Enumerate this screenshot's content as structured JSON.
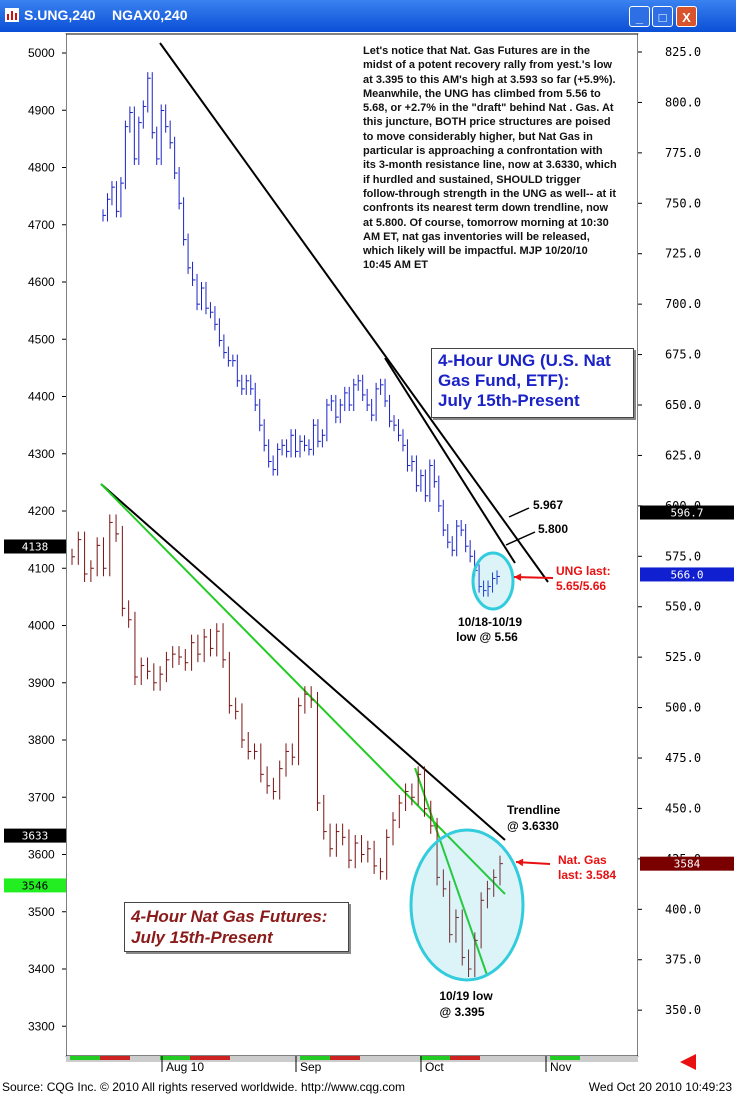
{
  "window": {
    "title_left": "S.UNG,240",
    "title_right": "NGAX0,240",
    "buttons": [
      "_",
      "□",
      "X"
    ]
  },
  "footer": {
    "source": "Source: CQG Inc. © 2010 All rights reserved worldwide. http://www.cqg.com",
    "timestamp": "Wed Oct 20 2010 10:49:23"
  },
  "commentary": "Let's notice that Nat. Gas Futures are in the midst of a potent recovery rally from yest.'s low at 3.395 to this AM's high at 3.593 so far (+5.9%). Meanwhile, the UNG has climbed from 5.56 to 5.68, or +2.7% in the \"draft\" behind Nat . Gas.  At this juncture, BOTH price structures are poised to move considerably higher, but Nat Gas in particular is approaching a confrontation with its 3-month resistance line, now at 3.6330, which if hurdled and sustained, SHOULD trigger follow-through strength in the UNG as well-- at it confronts its nearest term down trendline, now at 5.800.  Of course, tomorrow morning at 10:30 AM ET, nat gas inventories will be released, which likely will be impactful.  MJP  10/20/10  10:45 AM ET",
  "labels": {
    "ung_box": [
      "4-Hour UNG (U.S. Nat",
      "Gas Fund, ETF):",
      "July 15th-Present"
    ],
    "ng_box": [
      "4-Hour Nat Gas Futures:",
      "July 15th-Present"
    ],
    "ung_5967": "5.967",
    "ung_5800": "5.800",
    "ung_last": [
      "UNG last:",
      "5.65/5.66"
    ],
    "ung_low": [
      "10/18-10/19",
      "low @ 5.56"
    ],
    "ng_trend": [
      "Trendline",
      "@ 3.6330"
    ],
    "ng_last": [
      "Nat. Gas",
      "last: 3.584"
    ],
    "ng_low": [
      "10/19 low",
      "@ 3.395"
    ]
  },
  "tags": {
    "left_4138": "4138",
    "left_3633": "3633",
    "left_3546": "3546",
    "right_5967": "596.7",
    "right_566": "566.0",
    "right_3584": "3584"
  },
  "colors": {
    "ung_bars": "#1a22c8",
    "ng_bars": "#7a1010",
    "trend_black": "#000000",
    "trend_green": "#22cc22",
    "circle": "#33ccdd",
    "arrow_red": "#e81010",
    "tag_black": "#000000",
    "tag_blue": "#1020d0",
    "tag_green": "#22ee22",
    "tag_maroon": "#7a0000"
  },
  "chart_data": {
    "type": "line",
    "x_tick_labels": [
      "Aug 10",
      "Sep",
      "Oct",
      "Nov"
    ],
    "left_axis": {
      "ticks": [
        5000,
        4900,
        4800,
        4700,
        4600,
        4500,
        4400,
        4300,
        4200,
        4100,
        4000,
        3900,
        3800,
        3700,
        3600,
        3500,
        3400,
        3300
      ]
    },
    "right_axis": {
      "ticks": [
        "825.0",
        "800.0",
        "775.0",
        "750.0",
        "725.0",
        "700.0",
        "675.0",
        "650.0",
        "625.0",
        "600.0",
        "575.0",
        "550.0",
        "525.0",
        "500.0",
        "475.0",
        "450.0",
        "425.0",
        "400.0",
        "375.0",
        "350.0"
      ]
    },
    "series": [
      {
        "name": "S.UNG,240",
        "values": [
          7.44,
          7.52,
          7.58,
          7.46,
          7.6,
          7.88,
          7.95,
          7.72,
          7.9,
          7.98,
          8.12,
          7.85,
          7.72,
          7.96,
          7.88,
          7.8,
          7.65,
          7.5,
          7.32,
          7.18,
          7.12,
          7.0,
          7.08,
          6.98,
          6.96,
          6.9,
          6.82,
          6.76,
          6.72,
          6.72,
          6.62,
          6.58,
          6.62,
          6.58,
          6.5,
          6.4,
          6.3,
          6.22,
          6.18,
          6.28,
          6.3,
          6.27,
          6.35,
          6.27,
          6.32,
          6.3,
          6.28,
          6.4,
          6.32,
          6.35,
          6.5,
          6.52,
          6.44,
          6.5,
          6.56,
          6.5,
          6.6,
          6.62,
          6.55,
          6.5,
          6.45,
          6.58,
          6.6,
          6.52,
          6.42,
          6.4,
          6.35,
          6.3,
          6.2,
          6.22,
          6.1,
          6.15,
          6.05,
          6.2,
          6.12,
          6.0,
          5.88,
          5.82,
          5.78,
          5.9,
          5.88,
          5.8,
          5.75,
          5.68,
          5.6,
          5.58,
          5.6,
          5.64,
          5.65
        ],
        "unit": "cents (right axis)"
      },
      {
        "name": "NGAX0,240",
        "values": [
          4120,
          4150,
          4090,
          4100,
          4140,
          4100,
          4180,
          4160,
          4030,
          4010,
          3910,
          3930,
          3920,
          3900,
          3915,
          3940,
          3950,
          3945,
          3935,
          3970,
          3950,
          3980,
          3960,
          3990,
          3940,
          3860,
          3850,
          3800,
          3780,
          3780,
          3740,
          3720,
          3710,
          3750,
          3780,
          3770,
          3860,
          3880,
          3870,
          3690,
          3640,
          3610,
          3640,
          3630,
          3590,
          3620,
          3600,
          3610,
          3580,
          3570,
          3630,
          3660,
          3690,
          3710,
          3700,
          3740,
          3680,
          3650,
          3560,
          3540,
          3460,
          3490,
          3420,
          3400,
          3450,
          3520,
          3540,
          3560,
          3584
        ],
        "unit": "left axis"
      }
    ],
    "annotations": [
      "5.967",
      "5.800",
      "UNG last: 5.65/5.66",
      "10/18-10/19 low @ 5.56",
      "Trendline @ 3.6330",
      "Nat. Gas last: 3.584",
      "10/19 low @ 3.395"
    ]
  }
}
